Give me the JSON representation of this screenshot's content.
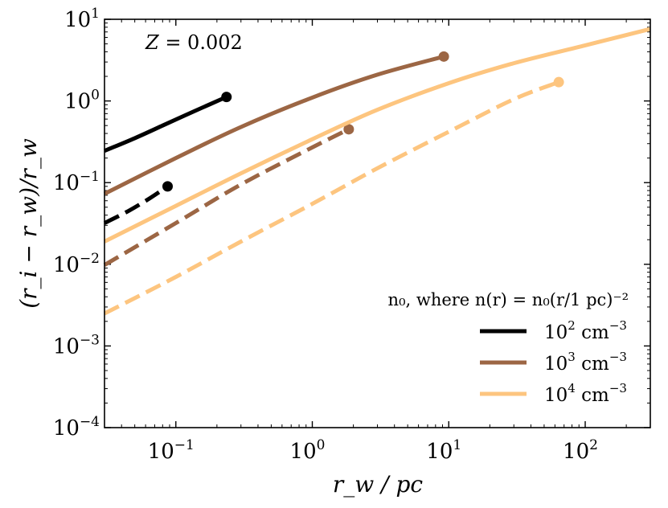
{
  "chart_data": {
    "type": "line",
    "title": "",
    "xlabel": "r_w / pc",
    "ylabel": "(r_i − r_w)/r_w",
    "xscale": "log",
    "yscale": "log",
    "xlim": [
      0.03,
      300
    ],
    "ylim": [
      0.0001,
      10
    ],
    "x_ticks": [
      {
        "value": 0.1,
        "base": "10",
        "exp": "−1"
      },
      {
        "value": 1,
        "base": "10",
        "exp": "0"
      },
      {
        "value": 10,
        "base": "10",
        "exp": "1"
      },
      {
        "value": 100,
        "base": "10",
        "exp": "2"
      }
    ],
    "y_ticks": [
      {
        "value": 0.0001,
        "base": "10",
        "exp": "−4"
      },
      {
        "value": 0.001,
        "base": "10",
        "exp": "−3"
      },
      {
        "value": 0.01,
        "base": "10",
        "exp": "−2"
      },
      {
        "value": 0.1,
        "base": "10",
        "exp": "−1"
      },
      {
        "value": 1,
        "base": "10",
        "exp": "0"
      },
      {
        "value": 10,
        "base": "10",
        "exp": "1"
      }
    ],
    "annotation": "Z = 0.002",
    "legend": {
      "position": "lower-right",
      "title": "n₀, where n(r) = n₀(r/1 pc)⁻²",
      "entries": [
        {
          "base": "10",
          "exp": "2",
          "unit": " cm",
          "unit_exp": "−3",
          "color": "#000000"
        },
        {
          "base": "10",
          "exp": "3",
          "unit": " cm",
          "unit_exp": "−3",
          "color": "#9c6644"
        },
        {
          "base": "10",
          "exp": "4",
          "unit": " cm",
          "unit_exp": "−3",
          "color": "#fdc57f"
        }
      ]
    },
    "series": [
      {
        "name": "10^2 cm^-3 solid",
        "color": "#000000",
        "dash": "solid",
        "endpoint": true,
        "x": [
          0.03,
          0.05,
          0.08,
          0.12,
          0.18,
          0.235
        ],
        "y": [
          0.245,
          0.35,
          0.5,
          0.68,
          0.92,
          1.12
        ]
      },
      {
        "name": "10^2 cm^-3 dashed",
        "color": "#000000",
        "dash": "dashed",
        "endpoint": true,
        "x": [
          0.03,
          0.045,
          0.065,
          0.087
        ],
        "y": [
          0.032,
          0.045,
          0.065,
          0.09
        ]
      },
      {
        "name": "10^3 cm^-3 solid",
        "color": "#9c6644",
        "dash": "solid",
        "endpoint": true,
        "x": [
          0.03,
          0.1,
          0.3,
          1,
          3,
          9.2
        ],
        "y": [
          0.073,
          0.2,
          0.48,
          1.1,
          2.1,
          3.5
        ]
      },
      {
        "name": "10^3 cm^-3 dashed",
        "color": "#9c6644",
        "dash": "dashed",
        "endpoint": true,
        "x": [
          0.03,
          0.1,
          0.3,
          1,
          1.85
        ],
        "y": [
          0.0098,
          0.032,
          0.095,
          0.27,
          0.45
        ]
      },
      {
        "name": "10^4 cm^-3 solid",
        "color": "#fdc57f",
        "dash": "solid",
        "endpoint": false,
        "x": [
          0.03,
          0.1,
          0.3,
          1,
          3,
          10,
          30,
          100,
          300
        ],
        "y": [
          0.019,
          0.052,
          0.13,
          0.34,
          0.78,
          1.65,
          2.9,
          4.8,
          7.6
        ]
      },
      {
        "name": "10^4 cm^-3 dashed",
        "color": "#fdc57f",
        "dash": "dashed",
        "endpoint": true,
        "x": [
          0.03,
          0.1,
          0.3,
          1,
          3,
          10,
          30,
          64
        ],
        "y": [
          0.0025,
          0.007,
          0.019,
          0.055,
          0.15,
          0.42,
          1.05,
          1.7
        ]
      }
    ]
  }
}
